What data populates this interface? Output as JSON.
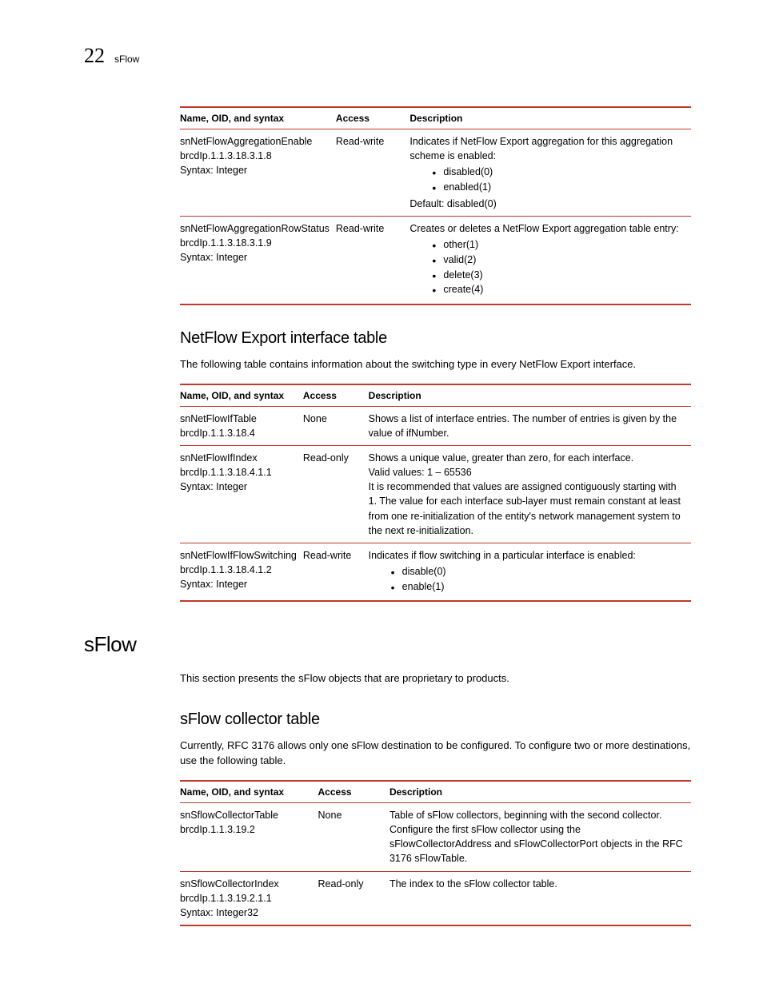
{
  "header": {
    "chapter_number": "22",
    "chapter_label": "sFlow"
  },
  "colors": {
    "rule": "#c0392b",
    "text": "#000000",
    "background": "#ffffff"
  },
  "table1": {
    "headers": [
      "Name, OID, and syntax",
      "Access",
      "Description"
    ],
    "rows": [
      {
        "name": [
          "snNetFlowAggregationEnable",
          "brcdIp.1.1.3.18.3.1.8",
          "Syntax: Integer"
        ],
        "access": "Read-write",
        "desc_pre": "Indicates if NetFlow Export aggregation for this aggregation scheme is enabled:",
        "bullets": [
          "disabled(0)",
          "enabled(1)"
        ],
        "desc_post": "Default: disabled(0)"
      },
      {
        "name": [
          "snNetFlowAggregationRowStatus",
          "brcdIp.1.1.3.18.3.1.9",
          "Syntax: Integer"
        ],
        "access": "Read-write",
        "desc_pre": "Creates or deletes a NetFlow Export aggregation table entry:",
        "bullets": [
          "other(1)",
          "valid(2)",
          "delete(3)",
          "create(4)"
        ],
        "desc_post": ""
      }
    ]
  },
  "section1": {
    "heading": "NetFlow Export interface table",
    "intro": "The following table contains information about the switching type in every NetFlow Export interface."
  },
  "table2": {
    "headers": [
      "Name, OID, and syntax",
      "Access",
      "Description"
    ],
    "rows": [
      {
        "name": [
          "snNetFlowIfTable",
          "brcdIp.1.1.3.18.4"
        ],
        "access": "None",
        "desc_pre": "Shows a list of interface entries. The number of entries is given by the value of ifNumber.",
        "bullets": [],
        "desc_post": ""
      },
      {
        "name": [
          "snNetFlowIfIndex",
          "brcdIp.1.1.3.18.4.1.1",
          "Syntax: Integer"
        ],
        "access": "Read-only",
        "desc_pre": "Shows a unique value, greater than zero, for each interface.\nValid values: 1 – 65536\nIt is recommended that values are assigned contiguously starting with 1. The value for each interface sub-layer must remain constant at least from one re-initialization of the entity's network management system to the next re-initialization.",
        "bullets": [],
        "desc_post": ""
      },
      {
        "name": [
          "snNetFlowIfFlowSwitching",
          "brcdIp.1.1.3.18.4.1.2",
          "Syntax: Integer"
        ],
        "access": "Read-write",
        "desc_pre": "Indicates if flow switching in a particular interface is enabled:",
        "bullets": [
          "disable(0)",
          "enable(1)"
        ],
        "desc_post": ""
      }
    ]
  },
  "section2": {
    "heading": "sFlow",
    "intro": "This section presents the sFlow objects that are proprietary to products."
  },
  "section3": {
    "heading": "sFlow collector table",
    "intro": "Currently, RFC 3176 allows only one sFlow destination to be configured. To configure two or more destinations, use the following table."
  },
  "table3": {
    "headers": [
      "Name, OID, and syntax",
      "Access",
      "Description"
    ],
    "rows": [
      {
        "name": [
          "snSflowCollectorTable",
          "brcdIp.1.1.3.19.2"
        ],
        "access": "None",
        "desc_pre": "Table of sFlow collectors, beginning with the second collector. Configure the first sFlow collector using the sFlowCollectorAddress and sFlowCollectorPort objects in the RFC 3176 sFlowTable.",
        "bullets": [],
        "desc_post": ""
      },
      {
        "name": [
          "snSflowCollectorIndex",
          "brcdIp.1.1.3.19.2.1.1",
          "Syntax: Integer32"
        ],
        "access": "Read-only",
        "desc_pre": "The index to the sFlow collector table.",
        "bullets": [],
        "desc_post": ""
      }
    ]
  }
}
